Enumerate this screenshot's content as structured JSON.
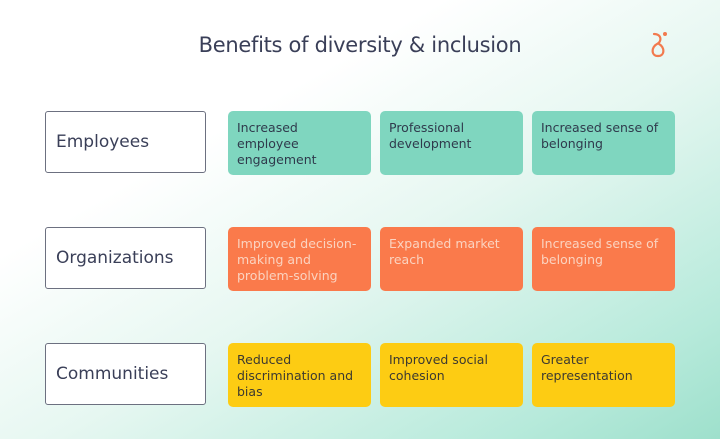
{
  "title": "Benefits of diversity & inclusion",
  "colors": {
    "employees": "#7fd6bf",
    "organizations": "#fa7a4b",
    "communities": "#fdcc13",
    "logo": "#f27a4e"
  },
  "logo_icon": "brand-logo-icon",
  "rows": [
    {
      "label": "Employees",
      "cells": [
        "Increased employee engagement",
        "Professional development",
        "Increased sense of belonging"
      ]
    },
    {
      "label": "Organizations",
      "cells": [
        "Improved decision-making and problem-solving",
        "Expanded market reach",
        "Increased sense of belonging"
      ]
    },
    {
      "label": "Communities",
      "cells": [
        "Reduced discrimination and bias",
        "Improved social cohesion",
        "Greater representation"
      ]
    }
  ]
}
